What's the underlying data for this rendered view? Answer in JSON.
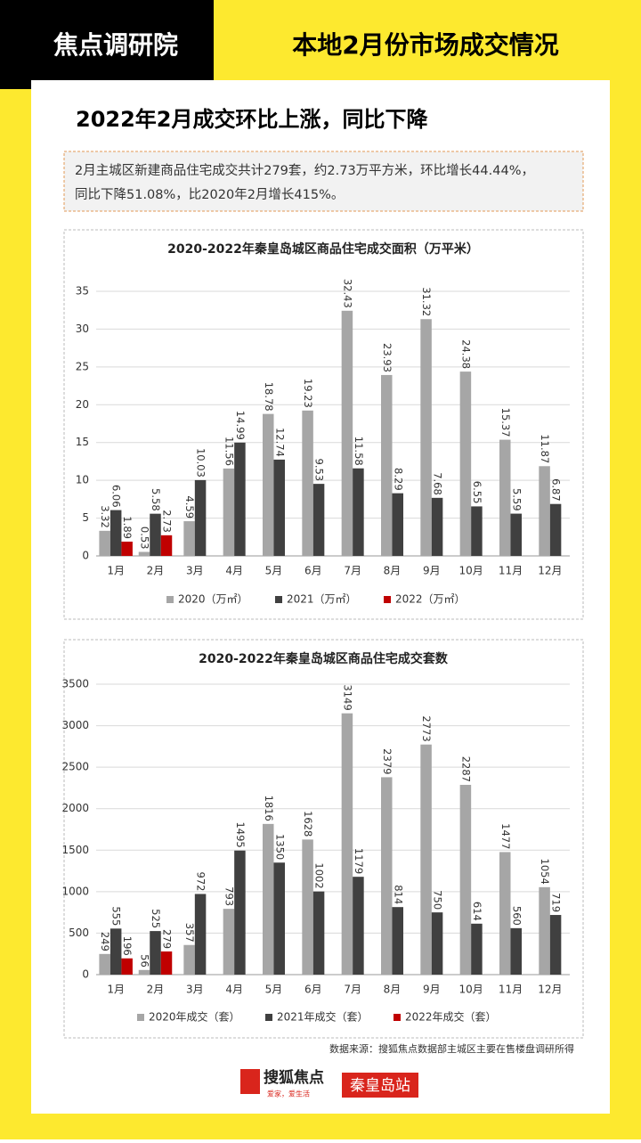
{
  "header": {
    "brand": "焦点调研院",
    "title": "本地2月份市场成交情况"
  },
  "headline": "2022年2月成交环比上涨，同比下降",
  "summary": [
    "2月主城区新建商品住宅成交共计279套，约2.73万平方米，环比增长44.44%，",
    "同比下降51.08%，比2020年2月增长415%。"
  ],
  "chart_data": [
    {
      "type": "bar",
      "title": "2020-2022年秦皇岛城区商品住宅成交面积（万平米）",
      "categories": [
        "1月",
        "2月",
        "3月",
        "4月",
        "5月",
        "6月",
        "7月",
        "8月",
        "9月",
        "10月",
        "11月",
        "12月"
      ],
      "series": [
        {
          "name": "2020（万㎡）",
          "color": "#a6a6a6",
          "values": [
            3.32,
            0.53,
            4.59,
            11.56,
            18.78,
            19.23,
            32.43,
            23.93,
            31.32,
            24.38,
            15.37,
            11.87
          ]
        },
        {
          "name": "2021（万㎡）",
          "color": "#404040",
          "values": [
            6.06,
            5.58,
            10.03,
            14.99,
            12.74,
            9.53,
            11.58,
            8.29,
            7.68,
            6.55,
            5.59,
            6.87
          ]
        },
        {
          "name": "2022（万㎡）",
          "color": "#c00000",
          "values": [
            1.89,
            2.73,
            null,
            null,
            null,
            null,
            null,
            null,
            null,
            null,
            null,
            null
          ]
        }
      ],
      "ylim": [
        0,
        35
      ],
      "yticks": [
        0,
        5,
        10,
        15,
        20,
        25,
        30,
        35
      ],
      "grid": true,
      "legend": "bottom"
    },
    {
      "type": "bar",
      "title": "2020-2022年秦皇岛城区商品住宅成交套数",
      "categories": [
        "1月",
        "2月",
        "3月",
        "4月",
        "5月",
        "6月",
        "7月",
        "8月",
        "9月",
        "10月",
        "11月",
        "12月"
      ],
      "series": [
        {
          "name": "2020年成交（套）",
          "color": "#a6a6a6",
          "values": [
            249,
            56,
            357,
            793,
            1816,
            1628,
            3149,
            2379,
            2773,
            2287,
            1477,
            1054
          ]
        },
        {
          "name": "2021年成交（套）",
          "color": "#404040",
          "values": [
            555,
            525,
            972,
            1495,
            1350,
            1002,
            1179,
            814,
            750,
            614,
            560,
            719
          ]
        },
        {
          "name": "2022年成交（套）",
          "color": "#c00000",
          "values": [
            196,
            279,
            null,
            null,
            null,
            null,
            null,
            null,
            null,
            null,
            null,
            null
          ]
        }
      ],
      "ylim": [
        0,
        3500
      ],
      "yticks": [
        0,
        500,
        1000,
        1500,
        2000,
        2500,
        3000,
        3500
      ],
      "grid": true,
      "legend": "bottom"
    }
  ],
  "source": "数据来源：搜狐焦点数据部主城区主要在售楼盘调研所得",
  "logo": {
    "name": "搜狐焦点",
    "slogan": "爱家，爱生活",
    "station": "秦皇岛站"
  }
}
